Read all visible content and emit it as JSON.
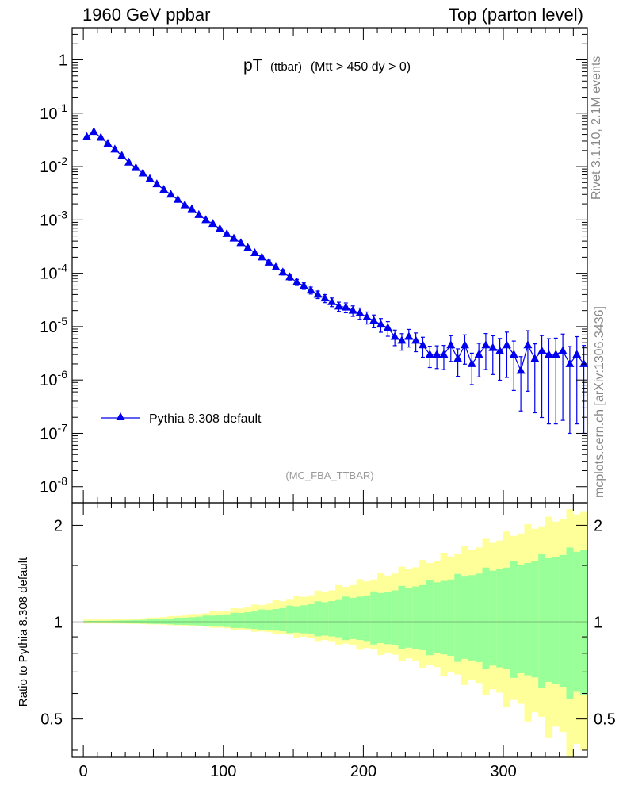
{
  "header": {
    "left": "1960 GeV ppbar",
    "right": "Top (parton level)"
  },
  "side": {
    "top": "Rivet 3.1.10,  2.1M events",
    "bottom": "mcplots.cern.ch [arXiv:1306.3436]"
  },
  "chart_data": [
    {
      "type": "scatter",
      "title": "pT",
      "title_small": "(ttbar)",
      "title_rest": "(Mtt > 450 dy > 0)",
      "watermark": "(MC_FBA_TTBAR)",
      "yscale": "log",
      "ylim": [
        5e-09,
        4
      ],
      "xlim": [
        -8,
        360
      ],
      "ytick_labels": [
        "1",
        "10^-1",
        "10^-2",
        "10^-3",
        "10^-4",
        "10^-5",
        "10^-6",
        "10^-7",
        "10^-8"
      ],
      "legend": {
        "label": "Pythia 8.308 default",
        "color": "#0000ee",
        "placement": "middle-left"
      },
      "series": [
        {
          "name": "Pythia 8.308 default",
          "color": "#0000ee",
          "x": [
            2.5,
            7.5,
            12.5,
            17.5,
            22.5,
            27.5,
            32.5,
            37.5,
            42.5,
            47.5,
            52.5,
            57.5,
            62.5,
            67.5,
            72.5,
            77.5,
            82.5,
            87.5,
            92.5,
            97.5,
            102.5,
            107.5,
            112.5,
            117.5,
            122.5,
            127.5,
            132.5,
            137.5,
            142.5,
            147.5,
            152.5,
            157.5,
            162.5,
            167.5,
            172.5,
            177.5,
            182.5,
            187.5,
            192.5,
            197.5,
            202.5,
            207.5,
            212.5,
            217.5,
            222.5,
            227.5,
            232.5,
            237.5,
            242.5,
            247.5,
            252.5,
            257.5,
            262.5,
            267.5,
            272.5,
            277.5,
            282.5,
            287.5,
            292.5,
            297.5,
            302.5,
            307.5,
            312.5,
            317.5,
            322.5,
            327.5,
            332.5,
            337.5,
            342.5,
            347.5,
            352.5,
            357.5
          ],
          "y": [
            0.036,
            0.045,
            0.035,
            0.027,
            0.021,
            0.016,
            0.012,
            0.0095,
            0.0075,
            0.0059,
            0.0047,
            0.0037,
            0.003,
            0.0024,
            0.0019,
            0.0016,
            0.00125,
            0.001,
            0.00085,
            0.00068,
            0.00055,
            0.00045,
            0.00037,
            0.0003,
            0.00024,
            0.0002,
            0.00016,
            0.00013,
            0.000105,
            8.5e-05,
            6.8e-05,
            5.8e-05,
            4.8e-05,
            4e-05,
            3.4e-05,
            2.9e-05,
            2.4e-05,
            2.3e-05,
            2e-05,
            1.8e-05,
            1.5e-05,
            1.3e-05,
            1.1e-05,
            9.5e-06,
            6.5e-06,
            5.5e-06,
            6.5e-06,
            5.5e-06,
            4.5e-06,
            3e-06,
            3e-06,
            3e-06,
            4.5e-06,
            2.5e-06,
            4.5e-06,
            2e-06,
            3e-06,
            4.5e-06,
            4e-06,
            3.5e-06,
            4.5e-06,
            3e-06,
            1.5e-06,
            4.5e-06,
            2.5e-06,
            3.5e-06,
            3e-06,
            3e-06,
            3.5e-06,
            2e-06,
            3e-06,
            2e-06
          ],
          "markers": [
            [
              2.5,
              0.036
            ],
            [
              7.5,
              0.045
            ],
            [
              12.5,
              0.035
            ],
            [
              17.5,
              0.027
            ],
            [
              22.5,
              0.021
            ],
            [
              27.5,
              0.016
            ],
            [
              32.5,
              0.012
            ],
            [
              37.5,
              0.0095
            ],
            [
              42.5,
              0.0075
            ],
            [
              47.5,
              0.0059
            ],
            [
              52.5,
              0.0047
            ],
            [
              57.5,
              0.0037
            ],
            [
              62.5,
              0.003
            ],
            [
              67.5,
              0.0024
            ],
            [
              72.5,
              0.0019
            ],
            [
              77.5,
              0.0016
            ],
            [
              82.5,
              0.00125
            ],
            [
              87.5,
              0.001
            ],
            [
              92.5,
              0.00085
            ],
            [
              97.5,
              0.00068
            ],
            [
              102.5,
              0.00055
            ],
            [
              107.5,
              0.00045
            ],
            [
              112.5,
              0.00037
            ],
            [
              117.5,
              0.0003
            ],
            [
              122.5,
              0.00024
            ],
            [
              127.5,
              0.0002
            ],
            [
              132.5,
              0.00016
            ],
            [
              137.5,
              0.00013
            ],
            [
              142.5,
              0.000105
            ],
            [
              147.5,
              8.5e-05
            ]
          ]
        }
      ]
    },
    {
      "type": "area",
      "ylabel": "Ratio to Pythia 8.308 default",
      "yscale": "log",
      "ylim": [
        0.38,
        2.35
      ],
      "xlim": [
        -8,
        360
      ],
      "ytick_labels": [
        "0.5",
        "1",
        "2"
      ],
      "xtick_labels": [
        "0",
        "100",
        "200",
        "300"
      ],
      "band_colors": {
        "inner": "#99ff99",
        "outer": "#ffff99",
        "line": "#000000"
      }
    }
  ]
}
